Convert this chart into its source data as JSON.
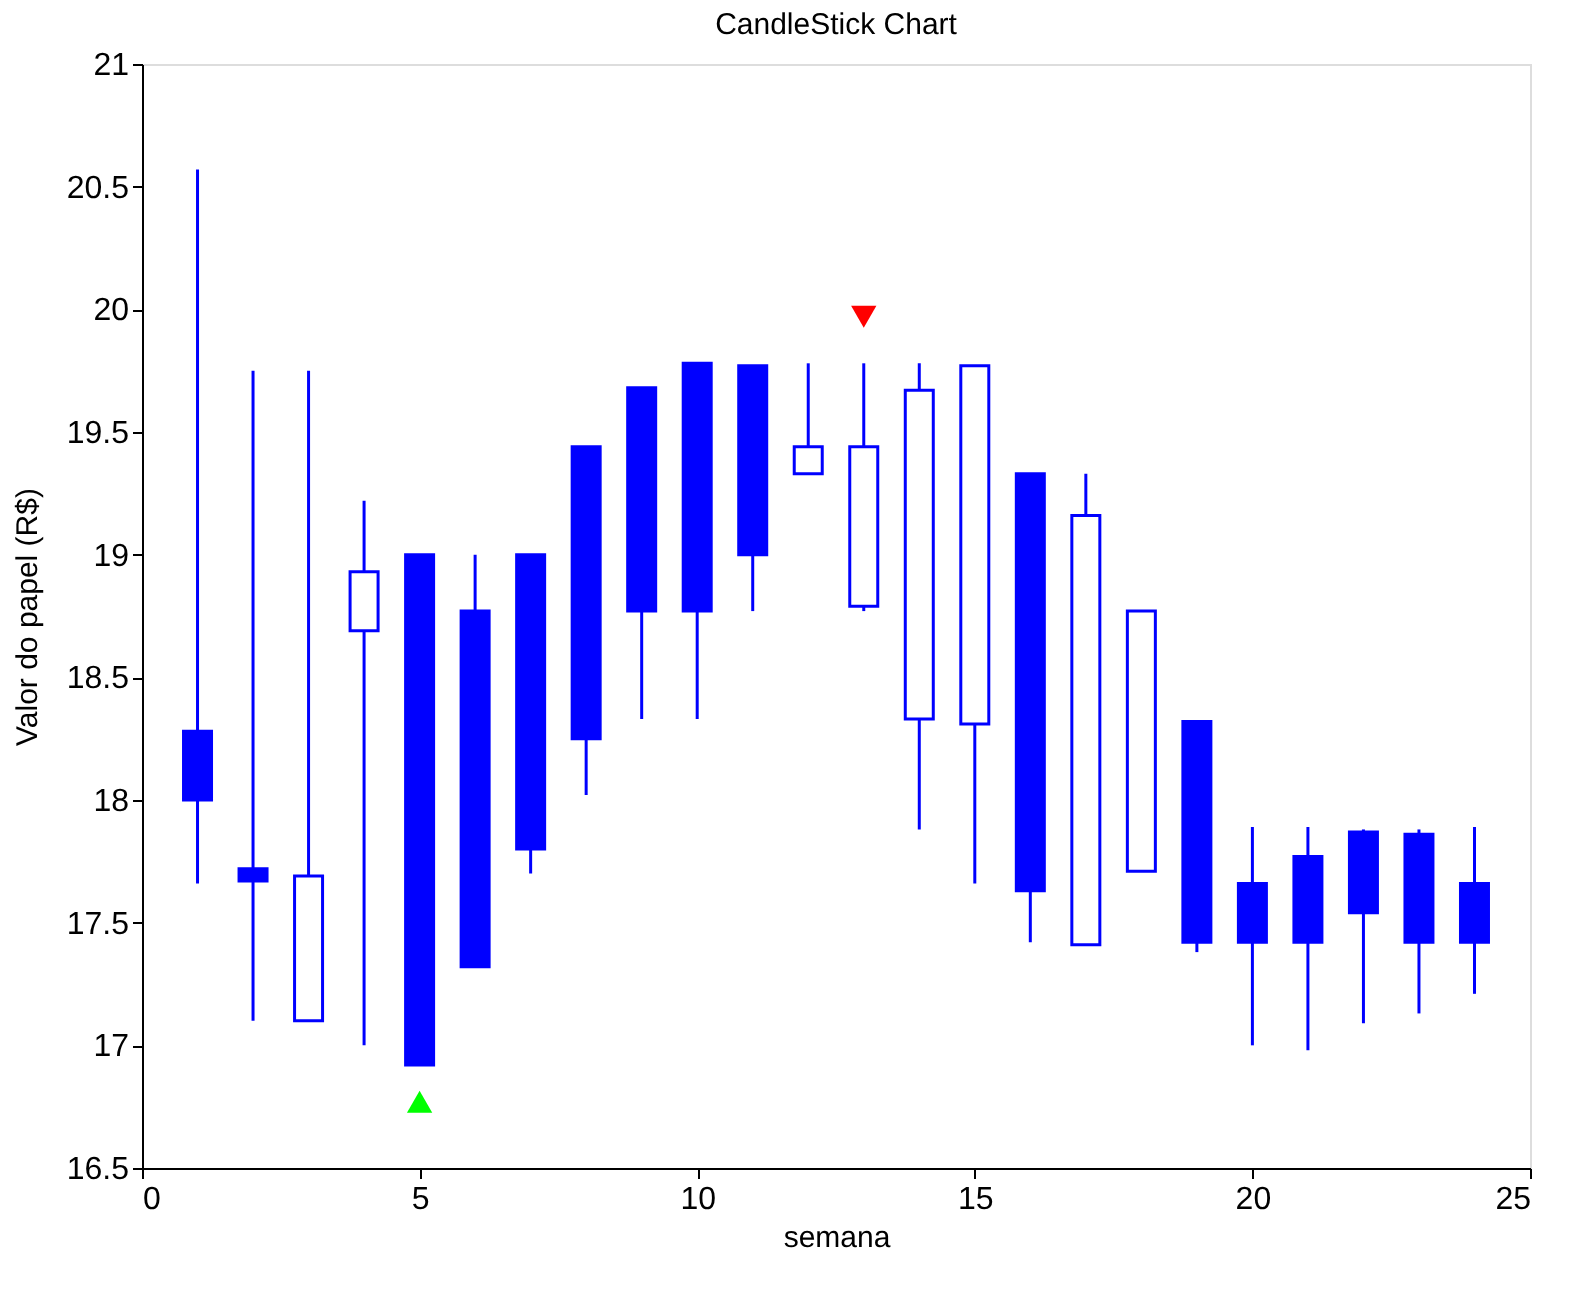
{
  "chart_data": {
    "type": "candlestick",
    "title": "CandleStick Chart",
    "xlabel": "semana",
    "ylabel": "Valor do papel (R$)",
    "x": [
      1,
      2,
      3,
      4,
      5,
      6,
      7,
      8,
      9,
      10,
      11,
      12,
      13,
      14,
      15,
      16,
      17,
      18,
      19,
      20,
      21,
      22,
      23,
      24
    ],
    "ohlc": [
      [
        18.28,
        20.57,
        17.66,
        18.0
      ],
      [
        17.72,
        19.75,
        17.1,
        17.67
      ],
      [
        17.1,
        19.75,
        17.1,
        17.69
      ],
      [
        18.69,
        19.22,
        17.0,
        18.93
      ],
      [
        19.0,
        19.0,
        16.92,
        16.92
      ],
      [
        18.77,
        19.0,
        17.32,
        17.32
      ],
      [
        19.0,
        19.0,
        17.7,
        17.8
      ],
      [
        19.44,
        19.44,
        18.02,
        18.25
      ],
      [
        19.68,
        19.68,
        18.33,
        18.77
      ],
      [
        19.78,
        19.78,
        18.33,
        18.77
      ],
      [
        19.77,
        19.77,
        18.77,
        19.0
      ],
      [
        19.33,
        19.78,
        19.33,
        19.44
      ],
      [
        18.79,
        19.78,
        18.77,
        19.44
      ],
      [
        18.33,
        19.78,
        17.88,
        19.67
      ],
      [
        18.31,
        19.77,
        17.66,
        19.77
      ],
      [
        19.33,
        19.33,
        17.42,
        17.63
      ],
      [
        17.41,
        19.33,
        17.41,
        19.16
      ],
      [
        17.71,
        18.77,
        17.71,
        18.77
      ],
      [
        18.32,
        18.32,
        17.38,
        17.42
      ],
      [
        17.66,
        17.89,
        17.0,
        17.42
      ],
      [
        17.77,
        17.89,
        16.98,
        17.42
      ],
      [
        17.87,
        17.88,
        17.09,
        17.54
      ],
      [
        17.86,
        17.88,
        17.13,
        17.42
      ],
      [
        17.66,
        17.89,
        17.21,
        17.42
      ]
    ],
    "color": "#0000ff",
    "series": [
      {
        "type": "scatter",
        "x": [
          5
        ],
        "values": [
          16.77
        ],
        "color": "#00ff00",
        "marker": "triangle"
      },
      {
        "type": "scatter",
        "x": [
          13
        ],
        "values": [
          19.97
        ],
        "color": "#ff0000",
        "marker": "triangle-down"
      }
    ],
    "xlim": [
      0,
      25
    ],
    "xticks": [
      0,
      5,
      10,
      15,
      20,
      25
    ],
    "ylim": [
      16.5,
      21
    ],
    "yticks": [
      16.5,
      17,
      17.5,
      18,
      18.5,
      19,
      19.5,
      20,
      20.5,
      21
    ],
    "grid": false
  }
}
